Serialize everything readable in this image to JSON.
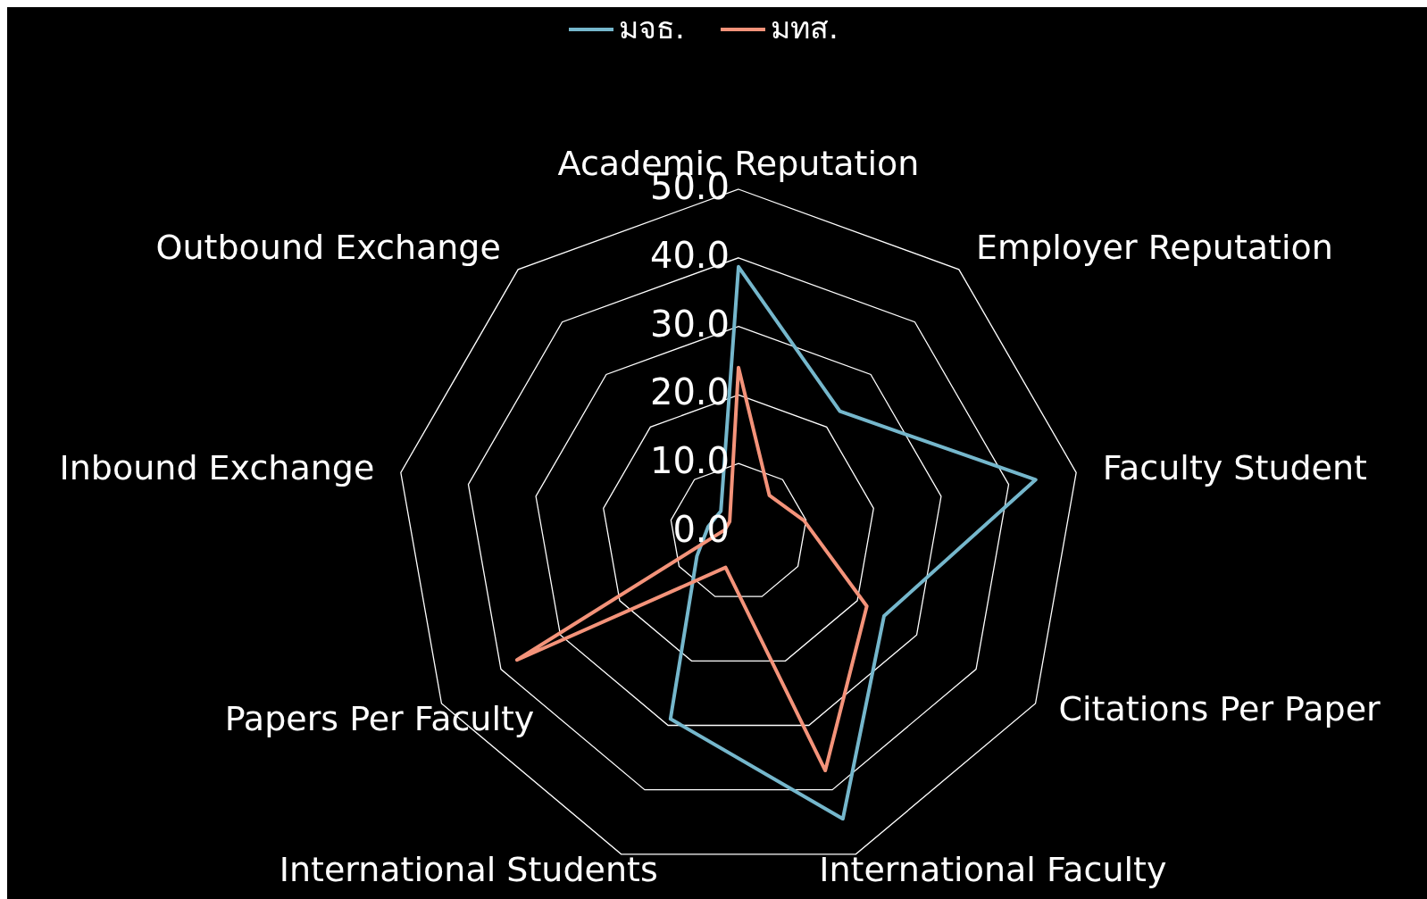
{
  "chart_data": {
    "type": "radar",
    "categories": [
      "Academic Reputation",
      "Employer Reputation",
      "Faculty Student",
      "Citations Per Paper",
      "International Faculty",
      "International Students",
      "Papers Per Faculty",
      "Inbound Exchange",
      "Outbound Exchange"
    ],
    "series": [
      {
        "name": "มจธ.",
        "color": "#75b7cc",
        "values": [
          38.7,
          23,
          44,
          24.5,
          44.5,
          29,
          7,
          4.5,
          4
        ]
      },
      {
        "name": "มทส.",
        "color": "#f4937a",
        "values": [
          24,
          7,
          9.7,
          21.6,
          37,
          5.5,
          37.3,
          2,
          2
        ]
      }
    ],
    "ylim": [
      0,
      50
    ],
    "yticks": [
      {
        "value": 0,
        "label": "0.0"
      },
      {
        "value": 10,
        "label": "10.0"
      },
      {
        "value": 20,
        "label": "20.0"
      },
      {
        "value": 30,
        "label": "30.0"
      },
      {
        "value": 40,
        "label": "40.0"
      },
      {
        "value": 50,
        "label": "50.0"
      }
    ],
    "grid": true,
    "legend": "top",
    "line_style": "solid",
    "marker": "none"
  }
}
